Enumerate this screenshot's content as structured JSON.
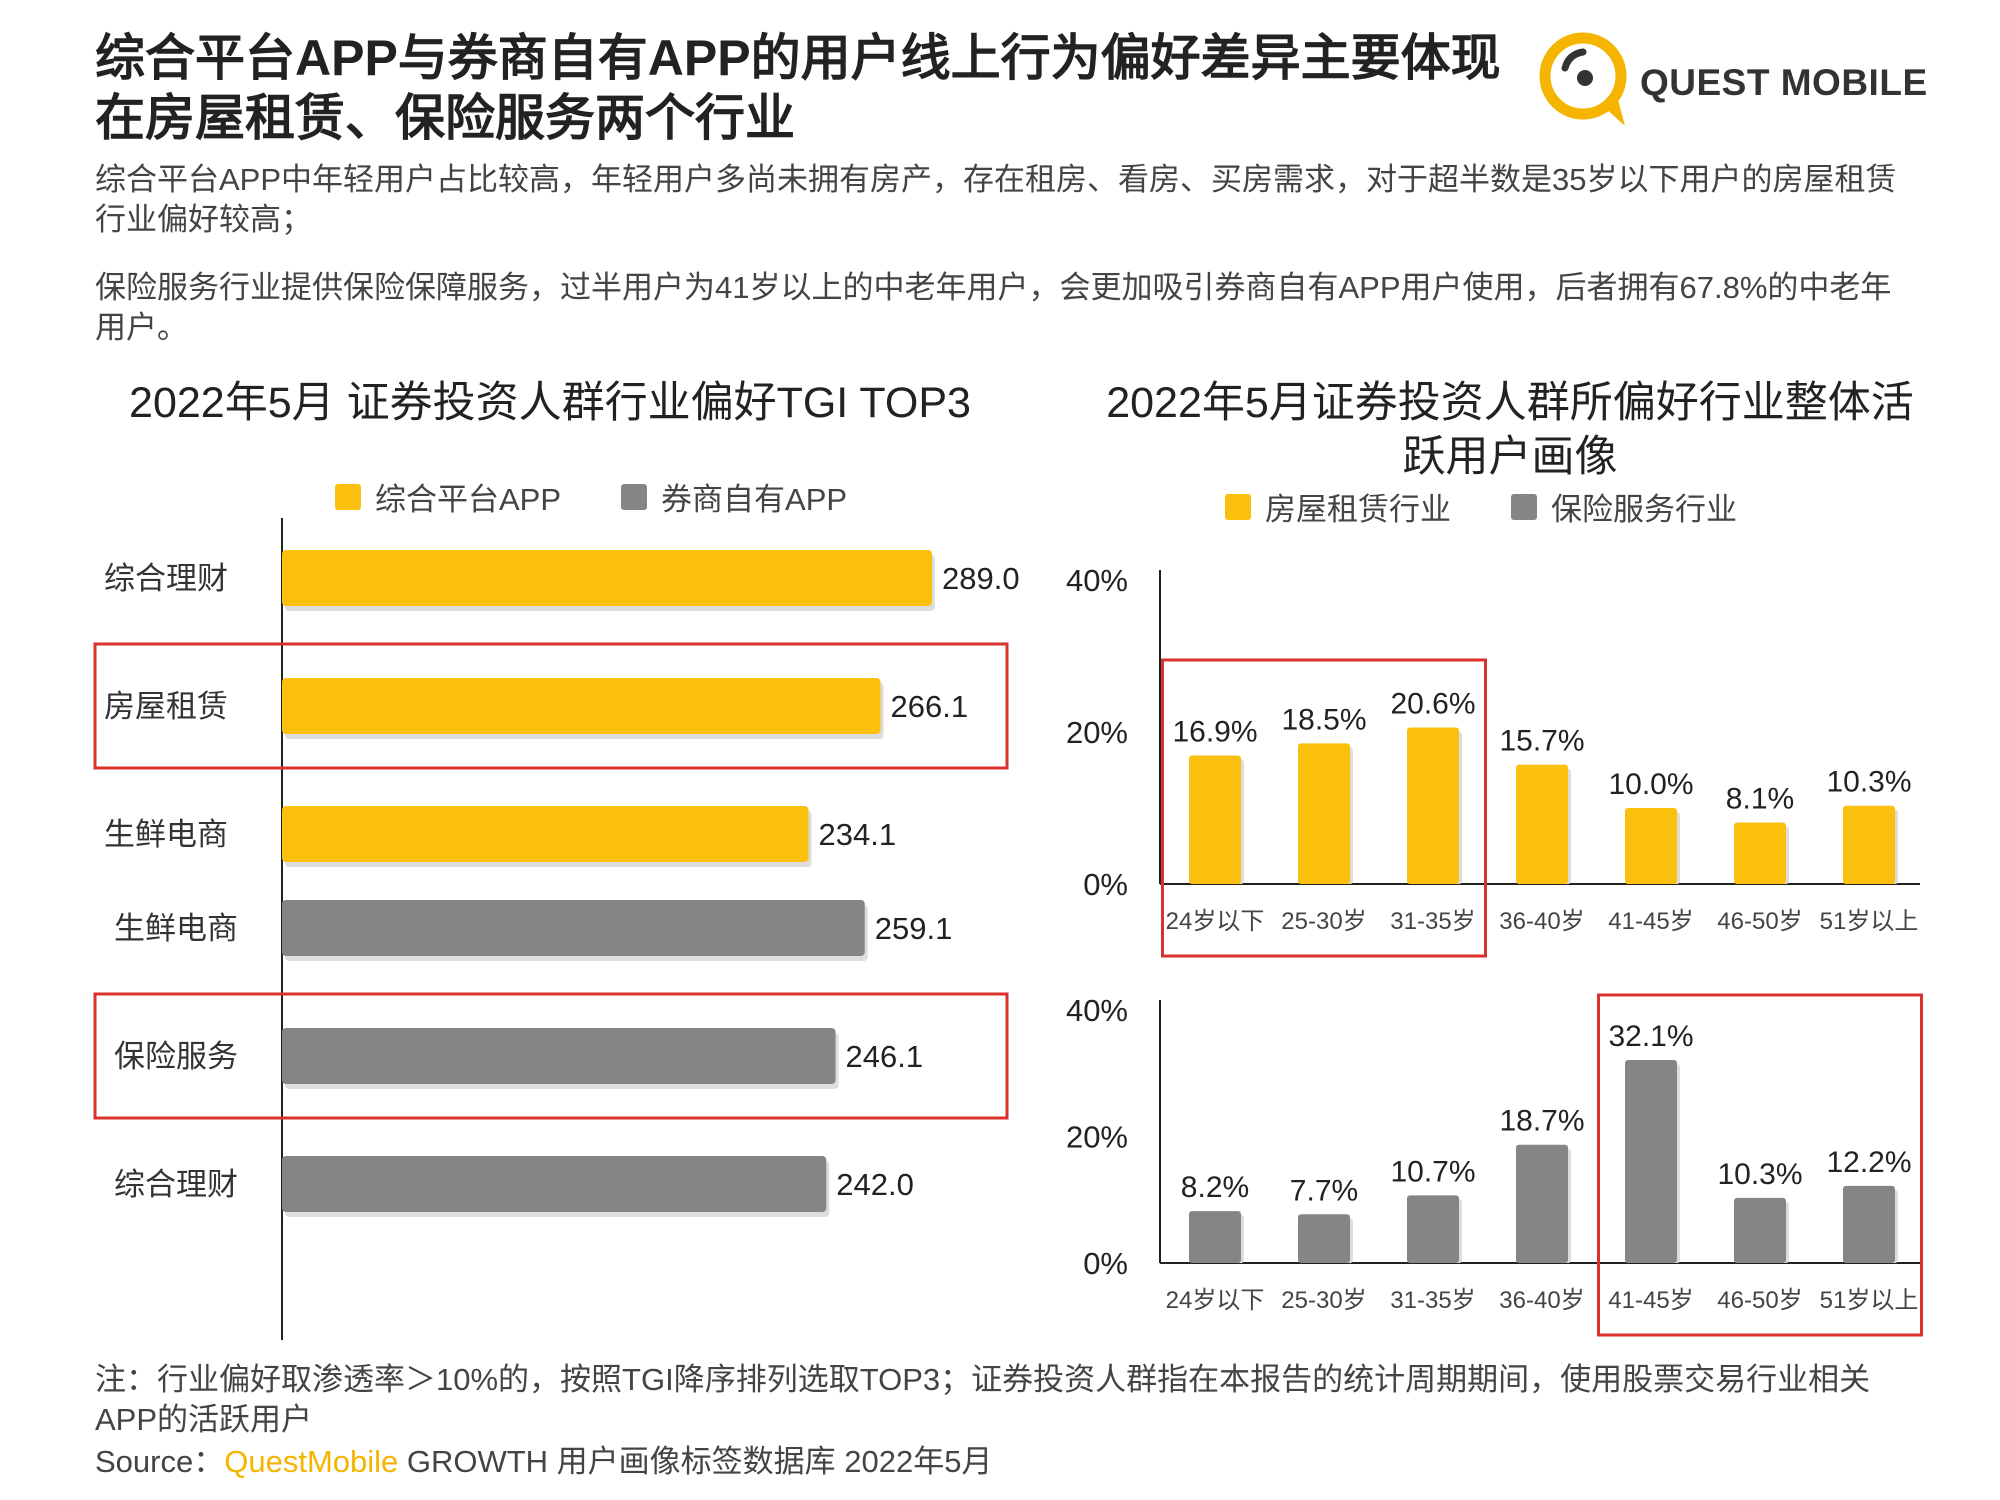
{
  "header": {
    "title": "综合平台APP与券商自有APP的用户线上行为偏好差异主要体现在房屋租赁、保险服务两个行业",
    "logo_text": "QUEST MOBILE"
  },
  "paragraphs": [
    "综合平台APP中年轻用户占比较高，年轻用户多尚未拥有房产，存在租房、看房、买房需求，对于超半数是35岁以下用户的房屋租赁行业偏好较高；",
    "保险服务行业提供保险保障服务，过半用户为41岁以上的中老年用户，会更加吸引券商自有APP用户使用，后者拥有67.8%的中老年用户。"
  ],
  "colors": {
    "yellow": "#FBBF0E",
    "gray": "#858585",
    "highlight": "#D9312B",
    "brand": "#F5B400"
  },
  "chart_data": [
    {
      "type": "bar",
      "orientation": "horizontal",
      "title": "2022年5月 证券投资人群行业偏好TGI TOP3",
      "legend": [
        "综合平台APP",
        "券商自有APP"
      ],
      "series": [
        {
          "name": "综合平台APP",
          "categories": [
            "综合理财",
            "房屋租赁",
            "生鲜电商"
          ],
          "values": [
            289.0,
            266.1,
            234.1
          ],
          "labels": [
            "289.0",
            "266.1",
            "234.1"
          ],
          "highlight_index": 1
        },
        {
          "name": "券商自有APP",
          "categories": [
            "生鲜电商",
            "保险服务",
            "综合理财"
          ],
          "values": [
            259.1,
            246.1,
            242.0
          ],
          "labels": [
            "259.1",
            "246.1",
            "242.0"
          ],
          "highlight_index": 1
        }
      ]
    },
    {
      "type": "bar",
      "title": "2022年5月证券投资人群所偏好行业整体活跃用户画像",
      "legend": [
        "房屋租赁行业",
        "保险服务行业"
      ],
      "categories": [
        "24岁以下",
        "25-30岁",
        "31-35岁",
        "36-40岁",
        "41-45岁",
        "46-50岁",
        "51岁以上"
      ],
      "yticks": [
        "0%",
        "20%",
        "40%"
      ],
      "ylim": [
        0,
        40
      ],
      "series": [
        {
          "name": "房屋租赁行业",
          "values": [
            16.9,
            18.5,
            20.6,
            15.7,
            10.0,
            8.1,
            10.3
          ],
          "labels": [
            "16.9%",
            "18.5%",
            "20.6%",
            "15.7%",
            "10.0%",
            "8.1%",
            "10.3%"
          ],
          "highlight_range": [
            0,
            2
          ]
        },
        {
          "name": "保险服务行业",
          "values": [
            8.2,
            7.7,
            10.7,
            18.7,
            32.1,
            10.3,
            12.2
          ],
          "labels": [
            "8.2%",
            "7.7%",
            "10.7%",
            "18.7%",
            "32.1%",
            "10.3%",
            "12.2%"
          ],
          "highlight_range": [
            4,
            6
          ]
        }
      ]
    }
  ],
  "footer": {
    "note": "注：行业偏好取渗透率＞10%的，按照TGI降序排列选取TOP3；证券投资人群指在本报告的统计周期期间，使用股票交易行业相关APP的活跃用户",
    "source_prefix": "Source：",
    "source_brand": "QuestMobile",
    "source_rest": " GROWTH 用户画像标签数据库 2022年5月"
  }
}
